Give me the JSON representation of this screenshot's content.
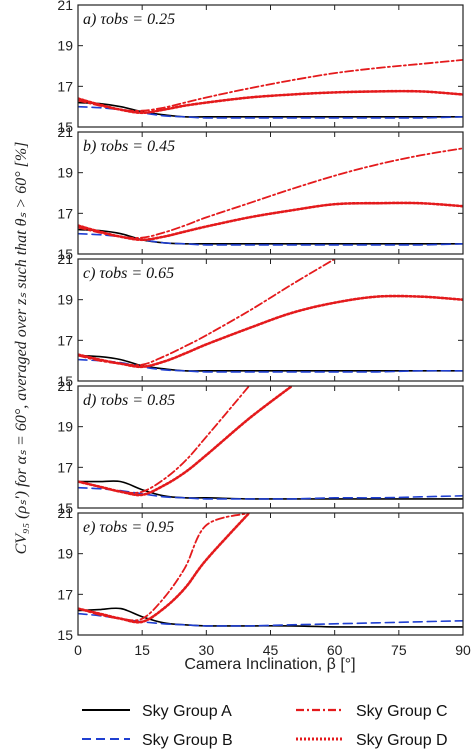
{
  "chart_data": {
    "type": "line",
    "ylabel": "CV₉₅ (ρₛ′) for αₛ = 60°, averaged over zₛ such that θₛ > 60° [%]",
    "xlabel": "Camera Inclination, β [°]",
    "xlim": [
      0,
      90
    ],
    "xticks": [
      "0",
      "15",
      "30",
      "45",
      "60",
      "75",
      "90"
    ],
    "ylim": [
      15,
      21
    ],
    "yticks": [
      "15",
      "17",
      "19",
      "21"
    ],
    "legend": {
      "position": "bottom",
      "entries": [
        {
          "label": "Sky Group A",
          "color": "#000000",
          "dash": "solid"
        },
        {
          "label": "Sky Group C",
          "color": "#e41a1c",
          "dash": "dashdot"
        },
        {
          "label": "Sky Group B",
          "color": "#1f3fd1",
          "dash": "dashed"
        },
        {
          "label": "Sky Group D",
          "color": "#e41a1c",
          "dash": "dotted"
        }
      ]
    },
    "x": [
      0,
      5,
      10,
      15,
      20,
      25,
      30,
      40,
      50,
      60,
      70,
      80,
      90
    ],
    "panels": [
      {
        "label": "a) τobs = 0.25",
        "series": [
          {
            "name": "Sky Group A",
            "values": [
              16.2,
              16.15,
              16.0,
              15.75,
              15.6,
              15.5,
              15.5,
              15.5,
              15.5,
              15.5,
              15.5,
              15.5,
              15.5
            ]
          },
          {
            "name": "Sky Group B",
            "values": [
              16.0,
              15.95,
              15.85,
              15.7,
              15.55,
              15.5,
              15.45,
              15.45,
              15.45,
              15.45,
              15.45,
              15.45,
              15.5
            ]
          },
          {
            "name": "Sky Group C",
            "values": [
              16.3,
              16.05,
              15.85,
              15.8,
              15.95,
              16.2,
              16.45,
              16.9,
              17.3,
              17.65,
              17.9,
              18.1,
              18.3
            ]
          },
          {
            "name": "Sky Group D",
            "values": [
              16.4,
              16.1,
              15.85,
              15.7,
              15.85,
              16.05,
              16.2,
              16.45,
              16.6,
              16.7,
              16.75,
              16.75,
              16.6
            ]
          }
        ]
      },
      {
        "label": "b) τobs = 0.45",
        "series": [
          {
            "name": "Sky Group A",
            "values": [
              16.2,
              16.15,
              16.0,
              15.7,
              15.55,
              15.5,
              15.5,
              15.5,
              15.5,
              15.5,
              15.5,
              15.5,
              15.5
            ]
          },
          {
            "name": "Sky Group B",
            "values": [
              16.0,
              15.95,
              15.85,
              15.7,
              15.55,
              15.5,
              15.45,
              15.45,
              15.45,
              15.45,
              15.45,
              15.45,
              15.5
            ]
          },
          {
            "name": "Sky Group C",
            "values": [
              16.3,
              16.05,
              15.85,
              15.8,
              16.05,
              16.4,
              16.8,
              17.5,
              18.2,
              18.85,
              19.4,
              19.85,
              20.2
            ]
          },
          {
            "name": "Sky Group D",
            "values": [
              16.4,
              16.1,
              15.85,
              15.7,
              15.85,
              16.1,
              16.35,
              16.8,
              17.15,
              17.45,
              17.5,
              17.5,
              17.35
            ]
          }
        ]
      },
      {
        "label": "c) τobs = 0.65",
        "series": [
          {
            "name": "Sky Group A",
            "values": [
              16.25,
              16.2,
              16.05,
              15.75,
              15.6,
              15.5,
              15.5,
              15.5,
              15.5,
              15.5,
              15.5,
              15.5,
              15.5
            ]
          },
          {
            "name": "Sky Group B",
            "values": [
              16.05,
              16.0,
              15.9,
              15.7,
              15.55,
              15.5,
              15.45,
              15.45,
              15.45,
              15.45,
              15.45,
              15.5,
              15.5
            ]
          },
          {
            "name": "Sky Group C",
            "values": [
              16.25,
              16.0,
              15.85,
              15.8,
              16.2,
              16.7,
              17.25,
              18.45,
              19.75,
              21.0
            ]
          },
          {
            "name": "Sky Group D",
            "values": [
              16.3,
              16.05,
              15.85,
              15.7,
              15.95,
              16.35,
              16.8,
              17.6,
              18.35,
              18.85,
              19.15,
              19.15,
              19.0
            ]
          }
        ]
      },
      {
        "label": "d) τobs = 0.85",
        "series": [
          {
            "name": "Sky Group A",
            "values": [
              16.3,
              16.3,
              16.3,
              15.9,
              15.6,
              15.5,
              15.5,
              15.45,
              15.45,
              15.45,
              15.45,
              15.45,
              15.45
            ]
          },
          {
            "name": "Sky Group B",
            "values": [
              16.0,
              15.95,
              15.85,
              15.7,
              15.55,
              15.5,
              15.45,
              15.45,
              15.45,
              15.5,
              15.5,
              15.55,
              15.6
            ]
          },
          {
            "name": "Sky Group C",
            "values": [
              16.3,
              16.05,
              15.8,
              15.8,
              16.4,
              17.3,
              18.5,
              21.0
            ]
          },
          {
            "name": "Sky Group D",
            "values": [
              16.3,
              16.05,
              15.8,
              15.65,
              16.1,
              16.75,
              17.6,
              19.4,
              21.0
            ]
          }
        ]
      },
      {
        "label": "e) τobs = 0.95",
        "series": [
          {
            "name": "Sky Group A",
            "values": [
              16.2,
              16.25,
              16.3,
              15.9,
              15.6,
              15.5,
              15.45,
              15.45,
              15.45,
              15.4,
              15.4,
              15.4,
              15.4
            ]
          },
          {
            "name": "Sky Group B",
            "values": [
              16.05,
              15.95,
              15.8,
              15.65,
              15.55,
              15.5,
              15.45,
              15.45,
              15.5,
              15.55,
              15.6,
              15.65,
              15.7
            ]
          },
          {
            "name": "Sky Group C",
            "values": [
              16.3,
              16.0,
              15.8,
              15.8,
              16.8,
              18.3,
              20.4,
              21.0
            ]
          },
          {
            "name": "Sky Group D",
            "values": [
              16.3,
              16.05,
              15.8,
              15.65,
              16.3,
              17.3,
              18.7,
              21.0
            ]
          }
        ]
      }
    ]
  }
}
